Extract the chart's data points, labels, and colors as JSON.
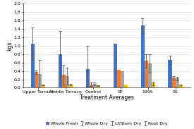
{
  "categories": [
    "Upper Terrace",
    "Middle Terrace",
    "Control",
    "SP",
    "1995",
    "SS"
  ],
  "series": {
    "Whole Fresh": [
      1.05,
      0.8,
      0.44,
      1.05,
      1.48,
      0.66
    ],
    "Whole Dry": [
      0.37,
      0.31,
      0.08,
      0.42,
      0.64,
      0.24
    ],
    "Lf/Stem Dry": [
      0.33,
      0.27,
      0.09,
      0.39,
      0.58,
      0.22
    ],
    "Root Dry": [
      0.07,
      0.07,
      0.05,
      0.07,
      0.1,
      0.07
    ]
  },
  "errors": {
    "Whole Fresh": [
      0.38,
      0.56,
      0.56,
      0.0,
      0.18,
      0.1
    ],
    "Whole Dry": [
      0.04,
      0.24,
      0.04,
      0.0,
      0.16,
      0.04
    ],
    "Lf/Stem Dry": [
      0.34,
      0.2,
      0.03,
      0.0,
      0.22,
      0.04
    ],
    "Root Dry": [
      0.01,
      0.02,
      0.01,
      0.0,
      0.04,
      0.01
    ]
  },
  "colors": {
    "Whole Fresh": "#4472c4",
    "Whole Dry": "#ed7d31",
    "Lf/Stem Dry": "#a5a5a5",
    "Root Dry": "#ffc000"
  },
  "xlabel": "Treatment Averages",
  "ylabel": "kgs",
  "ylim": [
    0,
    2.0
  ],
  "yticks": [
    0,
    0.2,
    0.4,
    0.6,
    0.8,
    1.0,
    1.2,
    1.4,
    1.6,
    1.8,
    2.0
  ],
  "axis_fontsize": 5.5,
  "tick_fontsize": 4.5,
  "legend_fontsize": 4.5,
  "bar_width": 0.13,
  "background_color": "#ffffff",
  "grid_color": "#d9d9d9"
}
